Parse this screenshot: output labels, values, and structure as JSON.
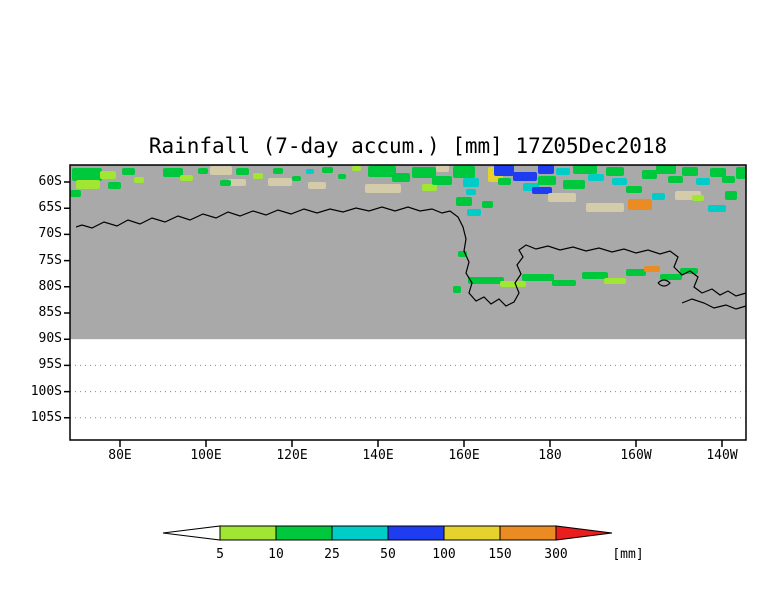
{
  "title": "Rainfall (7-day accum.) [mm] 17Z05Dec2018",
  "axes": {
    "y_ticks": [
      "60S",
      "65S",
      "70S",
      "75S",
      "80S",
      "85S",
      "90S",
      "95S",
      "100S",
      "105S"
    ],
    "x_ticks": [
      "80E",
      "100E",
      "120E",
      "140E",
      "160E",
      "180",
      "160W",
      "140W"
    ]
  },
  "map": {
    "data_bg": "#a9a9a9",
    "nodata_bg": "#ffffff",
    "coastline_color": "#000000",
    "gridline_color": "#8a8a8a",
    "patch_colors": [
      "#d4cbaa",
      "#a0e632",
      "#00c83c",
      "#00cdc8",
      "#1e3cf0",
      "#e6d22d",
      "#eb8c23",
      "#eb1e1e"
    ]
  },
  "colorbar": {
    "labels": [
      "5",
      "10",
      "25",
      "50",
      "100",
      "150",
      "300"
    ],
    "units_label": "[mm]",
    "colors": [
      "#ffffff",
      "#a0e632",
      "#00c83c",
      "#00cdc8",
      "#1e3cf0",
      "#e6d22d",
      "#eb8c23",
      "#eb1e1e"
    ]
  },
  "chart_data": {
    "type": "heatmap",
    "title": "Rainfall (7-day accum.) [mm] 17Z05Dec2018",
    "variable": "7-day accumulated rainfall",
    "units": "mm",
    "timestamp_shown_in_title": "17Z05Dec2018",
    "lon_ticks": [
      "80E",
      "100E",
      "120E",
      "140E",
      "160E",
      "180",
      "160W",
      "140W"
    ],
    "lat_ticks": [
      "60S",
      "65S",
      "70S",
      "75S",
      "80S",
      "85S",
      "90S",
      "95S",
      "100S",
      "105S"
    ],
    "shading_levels_mm": [
      5,
      10,
      25,
      50,
      100,
      150,
      300
    ],
    "level_colors": [
      "white(<5)",
      "yellow-green(5-10)",
      "green(10-25)",
      "cyan(25-50)",
      "blue(50-100)",
      "yellow(100-150)",
      "orange(150-300)",
      "red(>300)"
    ],
    "legend_position": "bottom",
    "notes": "Gray shaded map region covers 60S-90S; area south of 90S is blank with dotted latitude gridlines. Antarctic coastline contour drawn in black. Rainfall maxima (blue/yellow/orange) concentrated along 60S-67S between 150E and 140W; scattered green 5-25mm bands along the whole 60-65S belt and along ~78S near the Ross Ice Shelf edge (160E-160W).",
    "patch_format": "[x,y,w,h,color_index] in plot-local pixels; color_index refers to map.patch_colors",
    "patches": [
      [
        2,
        3,
        30,
        13,
        2
      ],
      [
        6,
        15,
        24,
        9,
        1
      ],
      [
        30,
        6,
        16,
        8,
        1
      ],
      [
        38,
        17,
        13,
        7,
        2
      ],
      [
        0,
        25,
        11,
        7,
        2
      ],
      [
        52,
        3,
        13,
        7,
        2
      ],
      [
        64,
        12,
        10,
        6,
        1
      ],
      [
        93,
        3,
        20,
        9,
        2
      ],
      [
        110,
        10,
        13,
        6,
        1
      ],
      [
        128,
        3,
        10,
        6,
        2
      ],
      [
        140,
        1,
        22,
        9,
        0
      ],
      [
        158,
        14,
        18,
        7,
        0
      ],
      [
        150,
        15,
        11,
        6,
        2
      ],
      [
        166,
        3,
        13,
        7,
        2
      ],
      [
        183,
        8,
        10,
        6,
        1
      ],
      [
        198,
        13,
        24,
        8,
        0
      ],
      [
        203,
        3,
        10,
        6,
        2
      ],
      [
        222,
        11,
        9,
        5,
        2
      ],
      [
        236,
        4,
        8,
        5,
        3
      ],
      [
        238,
        17,
        18,
        7,
        0
      ],
      [
        252,
        2,
        11,
        6,
        2
      ],
      [
        268,
        9,
        8,
        5,
        2
      ],
      [
        282,
        1,
        9,
        5,
        1
      ],
      [
        295,
        19,
        36,
        9,
        0
      ],
      [
        298,
        1,
        28,
        11,
        2
      ],
      [
        322,
        8,
        18,
        9,
        2
      ],
      [
        342,
        2,
        24,
        11,
        2
      ],
      [
        352,
        19,
        15,
        7,
        1
      ],
      [
        362,
        11,
        20,
        9,
        2
      ],
      [
        366,
        0,
        13,
        7,
        0
      ],
      [
        383,
        1,
        22,
        12,
        2
      ],
      [
        393,
        13,
        16,
        9,
        3
      ],
      [
        396,
        24,
        10,
        6,
        3
      ],
      [
        418,
        2,
        15,
        15,
        5
      ],
      [
        424,
        0,
        20,
        11,
        4
      ],
      [
        443,
        7,
        24,
        9,
        4
      ],
      [
        468,
        0,
        16,
        9,
        4
      ],
      [
        428,
        13,
        13,
        7,
        2
      ],
      [
        453,
        18,
        16,
        8,
        3
      ],
      [
        462,
        22,
        20,
        7,
        4
      ],
      [
        468,
        11,
        18,
        9,
        2
      ],
      [
        486,
        3,
        14,
        7,
        3
      ],
      [
        478,
        28,
        28,
        9,
        0
      ],
      [
        493,
        15,
        22,
        9,
        2
      ],
      [
        503,
        0,
        24,
        9,
        2
      ],
      [
        518,
        9,
        16,
        7,
        3
      ],
      [
        516,
        38,
        38,
        9,
        0
      ],
      [
        536,
        2,
        18,
        9,
        2
      ],
      [
        542,
        13,
        15,
        7,
        3
      ],
      [
        556,
        21,
        16,
        7,
        2
      ],
      [
        558,
        34,
        24,
        11,
        6
      ],
      [
        572,
        5,
        15,
        9,
        2
      ],
      [
        586,
        0,
        20,
        9,
        2
      ],
      [
        582,
        28,
        13,
        7,
        3
      ],
      [
        598,
        11,
        15,
        7,
        2
      ],
      [
        605,
        26,
        26,
        9,
        0
      ],
      [
        612,
        2,
        16,
        9,
        2
      ],
      [
        626,
        13,
        14,
        7,
        3
      ],
      [
        622,
        30,
        12,
        6,
        1
      ],
      [
        640,
        3,
        16,
        9,
        2
      ],
      [
        652,
        11,
        13,
        7,
        2
      ],
      [
        638,
        40,
        18,
        7,
        3
      ],
      [
        655,
        26,
        12,
        9,
        2
      ],
      [
        666,
        2,
        10,
        12,
        2
      ],
      [
        386,
        32,
        16,
        9,
        2
      ],
      [
        397,
        44,
        14,
        7,
        3
      ],
      [
        412,
        36,
        11,
        7,
        2
      ],
      [
        388,
        86,
        9,
        6,
        2
      ],
      [
        398,
        112,
        36,
        7,
        2
      ],
      [
        430,
        116,
        26,
        6,
        1
      ],
      [
        452,
        109,
        32,
        7,
        2
      ],
      [
        482,
        115,
        24,
        6,
        2
      ],
      [
        512,
        107,
        26,
        7,
        2
      ],
      [
        534,
        113,
        22,
        6,
        1
      ],
      [
        556,
        104,
        20,
        7,
        2
      ],
      [
        574,
        101,
        16,
        6,
        6
      ],
      [
        590,
        109,
        22,
        6,
        2
      ],
      [
        610,
        103,
        18,
        6,
        2
      ],
      [
        383,
        121,
        8,
        7,
        2
      ]
    ]
  }
}
